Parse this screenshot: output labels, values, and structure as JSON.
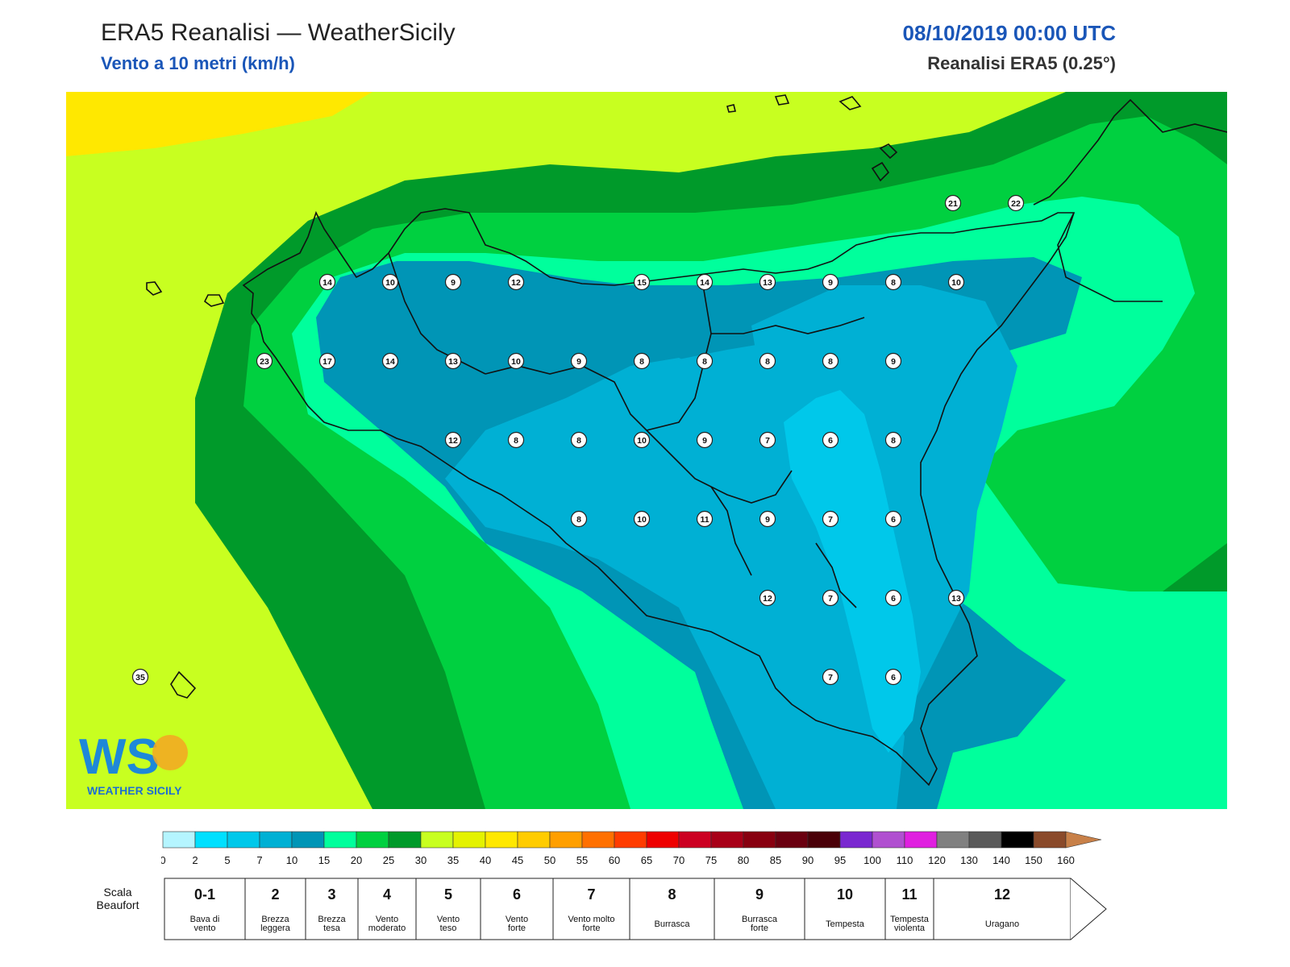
{
  "header": {
    "title": "ERA5 Reanalisi — WeatherSicily",
    "subtitle": "Vento a 10 metri (km/h)",
    "datetime": "08/10/2019 00:00 UTC",
    "source": "Reanalisi ERA5 (0.25°)"
  },
  "logo": {
    "letters": "WS",
    "text": "WEATHER SICILY"
  },
  "colors": {
    "c0_2": "#b5f5ff",
    "c2_5": "#00e0ff",
    "c5_7": "#00c8ea",
    "c7_10": "#00b0d4",
    "c10_15": "#0095b6",
    "c15_20": "#00ff9c",
    "c20_25": "#00d040",
    "c25_30": "#009a2a",
    "c30_35": "#c8ff20",
    "c35_40": "#e4f200",
    "c40_45": "#ffe800",
    "accent_blue": "#1a56b8"
  },
  "colorbar": {
    "ticks": [
      "0",
      "2",
      "5",
      "7",
      "10",
      "15",
      "20",
      "25",
      "30",
      "35",
      "40",
      "45",
      "50",
      "55",
      "60",
      "65",
      "70",
      "75",
      "80",
      "85",
      "90",
      "95",
      "100",
      "110",
      "120",
      "130",
      "140",
      "150",
      "160"
    ],
    "colors": [
      "#b5f5ff",
      "#00e0ff",
      "#00c8ea",
      "#00b0d4",
      "#0095b6",
      "#00ff9c",
      "#00d040",
      "#009a2a",
      "#c8ff20",
      "#e4f200",
      "#ffe800",
      "#ffcc00",
      "#ff9f00",
      "#ff7000",
      "#ff3c00",
      "#ee0000",
      "#cc0022",
      "#a80018",
      "#880010",
      "#6a0010",
      "#4a0008",
      "#7a28d0",
      "#b050d0",
      "#e020e0",
      "#808080",
      "#5a5a5a",
      "#000000",
      "#8a4a2a",
      "#c88048"
    ]
  },
  "beaufort": {
    "label": "Scala Beaufort",
    "cells": [
      {
        "num": "0-1",
        "desc": "Bava di vento"
      },
      {
        "num": "2",
        "desc": "Brezza leggera"
      },
      {
        "num": "3",
        "desc": "Brezza tesa"
      },
      {
        "num": "4",
        "desc": "Vento moderato"
      },
      {
        "num": "5",
        "desc": "Vento teso"
      },
      {
        "num": "6",
        "desc": "Vento forte"
      },
      {
        "num": "7",
        "desc": "Vento molto forte"
      },
      {
        "num": "8",
        "desc": "Burrasca"
      },
      {
        "num": "9",
        "desc": "Burrasca forte"
      },
      {
        "num": "10",
        "desc": "Tempesta"
      },
      {
        "num": "11",
        "desc": "Tempesta violenta"
      },
      {
        "num": "12",
        "desc": "Uragano"
      }
    ]
  },
  "stations": [
    {
      "v": "21"
    },
    {
      "v": "22"
    },
    {
      "v": "14"
    },
    {
      "v": "10"
    },
    {
      "v": "9"
    },
    {
      "v": "12"
    },
    {
      "v": "15"
    },
    {
      "v": "14"
    },
    {
      "v": "13"
    },
    {
      "v": "9"
    },
    {
      "v": "8"
    },
    {
      "v": "10"
    },
    {
      "v": "23"
    },
    {
      "v": "17"
    },
    {
      "v": "14"
    },
    {
      "v": "13"
    },
    {
      "v": "10"
    },
    {
      "v": "9"
    },
    {
      "v": "8"
    },
    {
      "v": "8"
    },
    {
      "v": "8"
    },
    {
      "v": "8"
    },
    {
      "v": "9"
    },
    {
      "v": "12"
    },
    {
      "v": "8"
    },
    {
      "v": "8"
    },
    {
      "v": "10"
    },
    {
      "v": "9"
    },
    {
      "v": "7"
    },
    {
      "v": "6"
    },
    {
      "v": "8"
    },
    {
      "v": "8"
    },
    {
      "v": "10"
    },
    {
      "v": "11"
    },
    {
      "v": "9"
    },
    {
      "v": "7"
    },
    {
      "v": "6"
    },
    {
      "v": "12"
    },
    {
      "v": "7"
    },
    {
      "v": "6"
    },
    {
      "v": "13"
    },
    {
      "v": "7"
    },
    {
      "v": "6"
    },
    {
      "v": "35"
    }
  ]
}
